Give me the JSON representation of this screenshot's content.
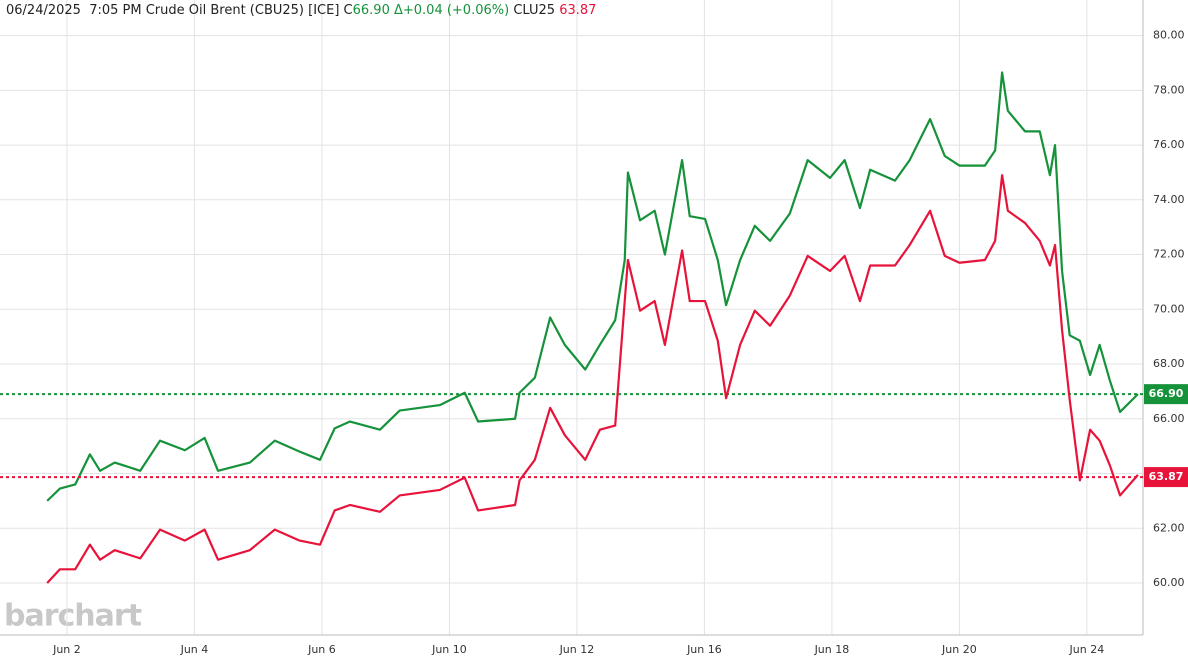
{
  "chart_data": {
    "type": "line",
    "header": {
      "datetime": "06/24/2025  7:05 PM",
      "symbol": "Crude Oil Brent (CBU25) [ICE]",
      "close_prefix": "C",
      "close": "66.90",
      "change": "Δ+0.04 (+0.06%)",
      "compare_symbol": "CLU25",
      "compare_value": "63.87"
    },
    "watermark": "barchart",
    "x": [
      -0.31,
      -0.11,
      0.13,
      0.36,
      0.52,
      0.75,
      1.15,
      1.46,
      1.85,
      2.16,
      2.37,
      2.87,
      3.26,
      3.65,
      3.97,
      4.2,
      4.44,
      4.91,
      5.22,
      5.85,
      6.24,
      6.45,
      7.03,
      7.1,
      7.34,
      7.58,
      7.81,
      8.13,
      8.36,
      8.6,
      8.75,
      8.8,
      8.99,
      9.22,
      9.38,
      9.65,
      9.77,
      10.01,
      10.21,
      10.34,
      10.56,
      10.79,
      11.03,
      11.34,
      11.62,
      11.97,
      12.2,
      12.44,
      12.6,
      12.99,
      13.22,
      13.54,
      13.77,
      14.0,
      14.4,
      14.56,
      14.67,
      14.76,
      15.03,
      15.26,
      15.42,
      15.5,
      15.61,
      15.73,
      15.89,
      16.05,
      16.2,
      16.36,
      16.52,
      16.8
    ],
    "series": [
      {
        "name": "Crude Oil Brent (CBU25)",
        "color": "#16923a",
        "values": [
          63.0,
          63.45,
          63.6,
          64.7,
          64.1,
          64.4,
          64.1,
          65.2,
          64.85,
          65.3,
          64.1,
          64.4,
          65.2,
          64.8,
          64.5,
          65.65,
          65.9,
          65.6,
          66.3,
          66.5,
          66.95,
          65.9,
          66.0,
          66.95,
          67.5,
          69.7,
          68.7,
          67.8,
          68.7,
          69.6,
          71.8,
          75.0,
          73.25,
          73.6,
          72.0,
          75.45,
          73.4,
          73.3,
          71.8,
          70.15,
          71.8,
          73.05,
          72.5,
          73.5,
          75.45,
          74.8,
          75.45,
          73.7,
          75.1,
          74.7,
          75.45,
          76.95,
          75.6,
          75.25,
          75.25,
          75.8,
          78.65,
          77.25,
          76.5,
          76.5,
          74.9,
          76.0,
          71.4,
          69.05,
          68.85,
          67.6,
          68.7,
          67.4,
          66.25,
          66.9
        ],
        "last": {
          "value": 66.9,
          "label": "66.90"
        }
      },
      {
        "name": "CLU25",
        "color": "#e8133a",
        "values": [
          60.0,
          60.5,
          60.5,
          61.4,
          60.85,
          61.2,
          60.9,
          61.95,
          61.55,
          61.95,
          60.85,
          61.2,
          61.95,
          61.55,
          61.4,
          62.65,
          62.85,
          62.6,
          63.2,
          63.4,
          63.85,
          62.65,
          62.85,
          63.75,
          64.5,
          66.4,
          65.4,
          64.5,
          65.6,
          65.75,
          70.3,
          71.8,
          69.95,
          70.3,
          68.7,
          72.15,
          70.3,
          70.3,
          68.85,
          66.75,
          68.7,
          69.95,
          69.4,
          70.5,
          71.95,
          71.4,
          71.95,
          70.3,
          71.6,
          71.6,
          72.35,
          73.6,
          71.95,
          71.7,
          71.8,
          72.5,
          74.9,
          73.6,
          73.15,
          72.5,
          71.6,
          72.35,
          69.25,
          66.7,
          63.75,
          65.6,
          65.2,
          64.3,
          63.2,
          63.95
        ],
        "last": {
          "value": 63.87,
          "label": "63.87"
        }
      }
    ],
    "xlim": [
      -1.05,
      16.88
    ],
    "xticks": [
      {
        "value": 0,
        "label": "Jun 2"
      },
      {
        "value": 2,
        "label": "Jun 4"
      },
      {
        "value": 4,
        "label": "Jun 6"
      },
      {
        "value": 6,
        "label": "Jun 10"
      },
      {
        "value": 8,
        "label": "Jun 12"
      },
      {
        "value": 10,
        "label": "Jun 16"
      },
      {
        "value": 12,
        "label": "Jun 18"
      },
      {
        "value": 14,
        "label": "Jun 20"
      },
      {
        "value": 16,
        "label": "Jun 24"
      }
    ],
    "ylim": [
      58.1,
      81.3
    ],
    "yticks": [
      {
        "value": 60,
        "label": "60.00"
      },
      {
        "value": 62,
        "label": "62.00"
      },
      {
        "value": 64,
        "label": "64.00"
      },
      {
        "value": 66,
        "label": "66.00"
      },
      {
        "value": 68,
        "label": "68.00"
      },
      {
        "value": 70,
        "label": "70.00"
      },
      {
        "value": 72,
        "label": "72.00"
      },
      {
        "value": 74,
        "label": "74.00"
      },
      {
        "value": 76,
        "label": "76.00"
      },
      {
        "value": 78,
        "label": "78.00"
      },
      {
        "value": 80,
        "label": "80.00"
      }
    ],
    "grid": true
  }
}
